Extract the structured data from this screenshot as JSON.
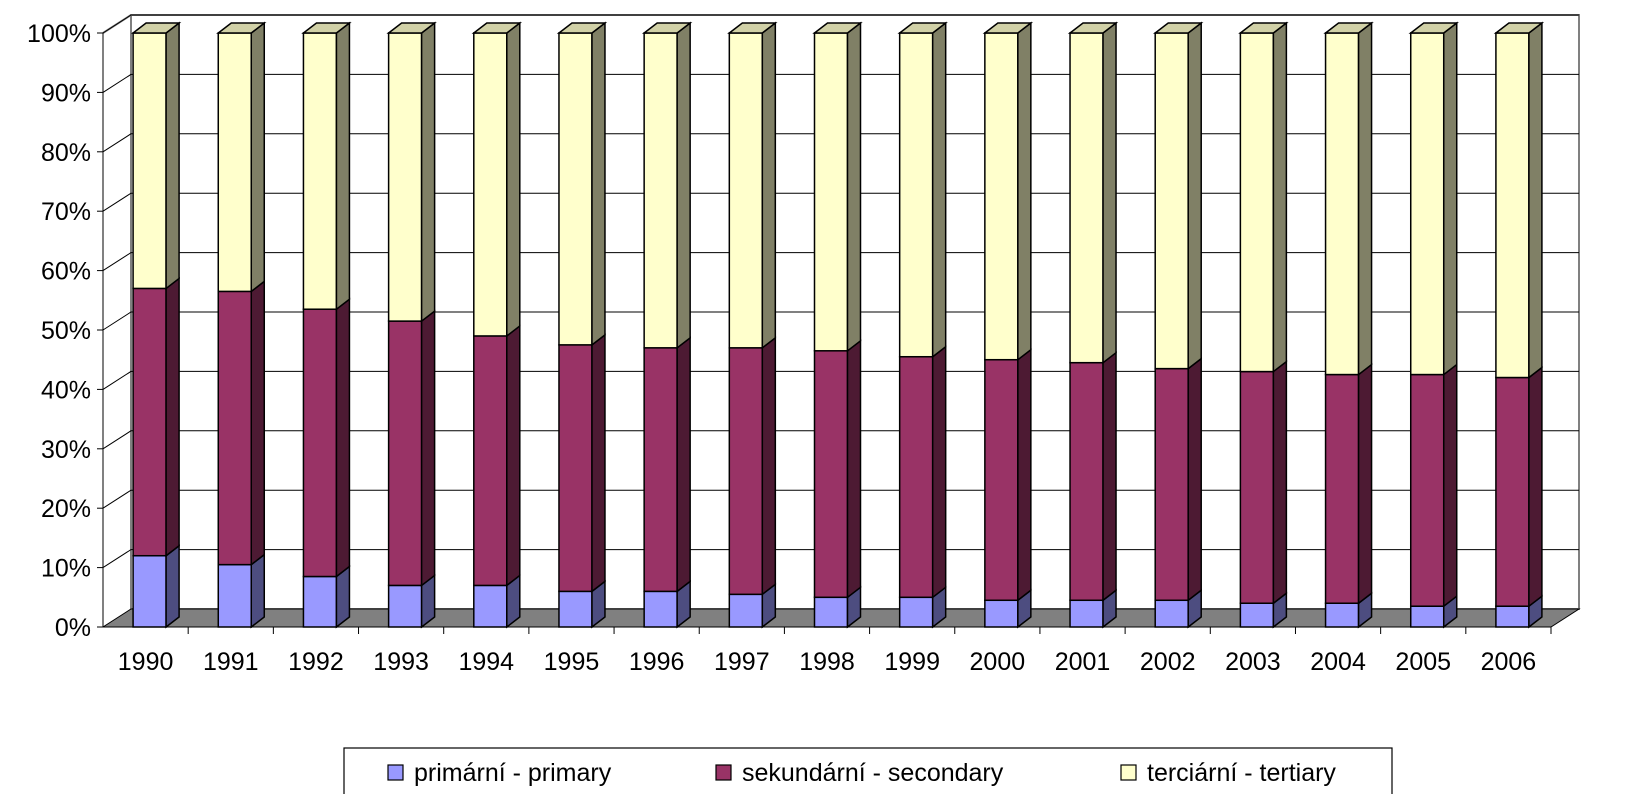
{
  "chart_data": {
    "type": "bar",
    "stacked": "percent",
    "three_d": true,
    "categories": [
      "1990",
      "1991",
      "1992",
      "1993",
      "1994",
      "1995",
      "1996",
      "1997",
      "1998",
      "1999",
      "2000",
      "2001",
      "2002",
      "2003",
      "2004",
      "2005",
      "2006"
    ],
    "series": [
      {
        "name": "primární - primary",
        "color": "#9999ff",
        "values": [
          12,
          10.5,
          8.5,
          7,
          7,
          6,
          6,
          5.5,
          5,
          5,
          4.5,
          4.5,
          4.5,
          4,
          4,
          3.5,
          3.5
        ]
      },
      {
        "name": "sekundární - secondary",
        "color": "#993366",
        "values": [
          45,
          46,
          45,
          44.5,
          42,
          41.5,
          41,
          41.5,
          41.5,
          40.5,
          40.5,
          40,
          39,
          39,
          38.5,
          39,
          38.5
        ]
      },
      {
        "name": "terciární - tertiary",
        "color": "#ffffcc",
        "values": [
          43,
          43.5,
          46.5,
          48.5,
          51,
          52.5,
          53,
          53,
          53.5,
          54.5,
          55,
          55.5,
          56.5,
          57,
          57.5,
          57.5,
          58
        ]
      }
    ],
    "y_ticks": [
      "0%",
      "10%",
      "20%",
      "30%",
      "40%",
      "50%",
      "60%",
      "70%",
      "80%",
      "90%",
      "100%"
    ],
    "ylim": [
      0,
      100
    ],
    "grid": true,
    "legend_position": "bottom"
  }
}
